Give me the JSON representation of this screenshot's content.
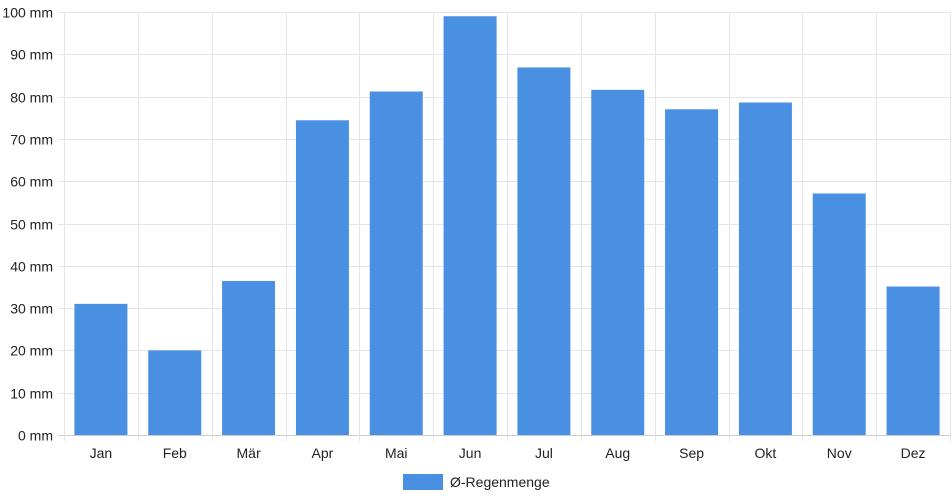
{
  "chart_data": {
    "type": "bar",
    "categories": [
      "Jan",
      "Feb",
      "Mär",
      "Apr",
      "Mai",
      "Jun",
      "Jul",
      "Aug",
      "Sep",
      "Okt",
      "Nov",
      "Dez"
    ],
    "series": [
      {
        "name": "Ø-Regenmenge",
        "values": [
          31,
          20,
          36.4,
          74.4,
          81.2,
          99,
          86.9,
          81.6,
          77,
          78.6,
          57.1,
          35.1
        ],
        "color": "#4a90e2"
      }
    ],
    "y_ticks": [
      "0 mm",
      "10 mm",
      "20 mm",
      "30 mm",
      "40 mm",
      "50 mm",
      "60 mm",
      "70 mm",
      "80 mm",
      "90 mm",
      "100 mm"
    ],
    "ylim": [
      0,
      100
    ],
    "y_unit": "mm",
    "grid": true,
    "legend_position": "bottom",
    "colors": {
      "bar": "#4a90e2",
      "grid": "#e5e5e5",
      "text": "#222222"
    }
  }
}
